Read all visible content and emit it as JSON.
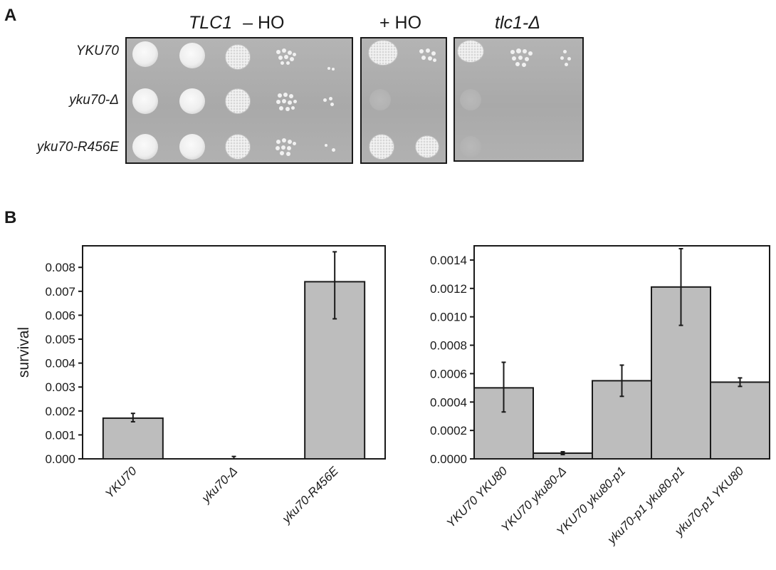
{
  "panel_a": {
    "letter": "A",
    "headers": {
      "tlc1_gene": "TLC1",
      "minus_ho": "– HO",
      "plus_ho": "+ HO",
      "tlc1_del": "tlc1-Δ"
    },
    "row_labels": [
      "YKU70",
      "yku70-Δ",
      "yku70-R456E"
    ]
  },
  "panel_b": {
    "letter": "B"
  },
  "chart_data": [
    {
      "type": "bar",
      "title": "",
      "xlabel": "",
      "ylabel": "survival",
      "ylim": [
        0,
        0.0089
      ],
      "yticks": [
        "0.000",
        "0.001",
        "0.002",
        "0.003",
        "0.004",
        "0.005",
        "0.006",
        "0.007",
        "0.008"
      ],
      "ytick_values": [
        0,
        0.001,
        0.002,
        0.003,
        0.004,
        0.005,
        0.006,
        0.007,
        0.008
      ],
      "categories": [
        "YKU70",
        "yku70-Δ",
        "yku70-R456E"
      ],
      "values": [
        0.0017,
        0.0,
        0.0074
      ],
      "error_low": [
        0.00155,
        0.0,
        0.00585
      ],
      "error_high": [
        0.0019,
        0.0001,
        0.00865
      ],
      "bar_color": "#bdbdbd",
      "grid": false
    },
    {
      "type": "bar",
      "title": "",
      "xlabel": "",
      "ylabel": "",
      "ylim": [
        0,
        0.0015
      ],
      "yticks": [
        "0.0000",
        "0.0002",
        "0.0004",
        "0.0006",
        "0.0008",
        "0.0010",
        "0.0012",
        "0.0014"
      ],
      "ytick_values": [
        0,
        0.0002,
        0.0004,
        0.0006,
        0.0008,
        0.001,
        0.0012,
        0.0014
      ],
      "categories": [
        "YKU70 YKU80",
        "YKU70 yku80-Δ",
        "YKU70 yku80-p1",
        "yku70-p1 yku80-p1",
        "yku70-p1 YKU80"
      ],
      "values": [
        0.0005,
        4e-05,
        0.00055,
        0.00121,
        0.00054
      ],
      "error_low": [
        0.00033,
        3e-05,
        0.00044,
        0.00094,
        0.00051
      ],
      "error_high": [
        0.00068,
        5e-05,
        0.00066,
        0.00148,
        0.00057
      ],
      "bar_color": "#bdbdbd",
      "grid": false
    }
  ]
}
